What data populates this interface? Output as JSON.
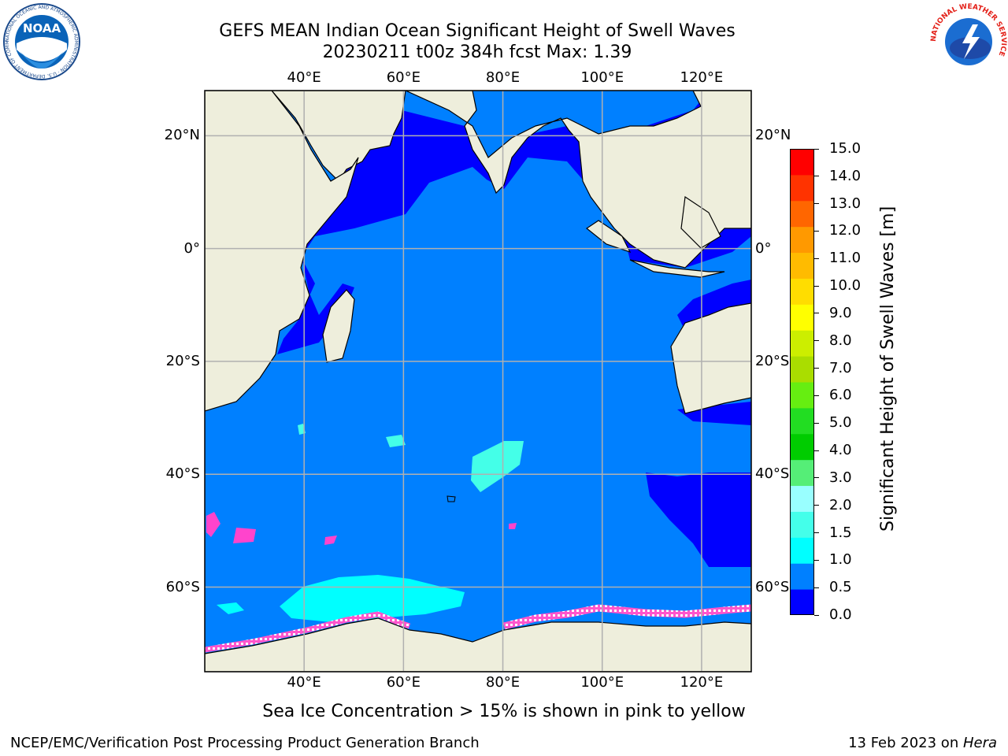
{
  "header": {
    "title_line1": "GEFS MEAN Indian Ocean Significant Height of Swell Waves",
    "title_line2": "20230211 t00z 384h fcst   Max: 1.39"
  },
  "logos": {
    "left_text": "NOAA",
    "left_ring_text": "NATIONAL OCEANIC AND ATMOSPHERIC ADMINISTRATION · U.S. DEPARTMENT OF COMMERCE",
    "right_ring_text": "NATIONAL WEATHER SERVICE"
  },
  "map": {
    "lon_labels": [
      "40°E",
      "60°E",
      "80°E",
      "100°E",
      "120°E"
    ],
    "lat_labels": [
      "20°N",
      "0°",
      "20°S",
      "40°S",
      "60°S"
    ],
    "lon_range": [
      20,
      130
    ],
    "lat_range": [
      -75,
      28
    ],
    "grid": true,
    "colors": {
      "ocean_low": "#0000ff",
      "ocean_main": "#0080ff",
      "ocean_cyan": "#00ffff",
      "ocean_light": "#44ffe8",
      "land": "#eeeedc",
      "ice_pink": "#ff44cc",
      "ice_yellow": "#ffff66"
    }
  },
  "colorbar": {
    "label": "Significant Height of Swell Waves [m]",
    "ticks": [
      "0.0",
      "0.5",
      "1.0",
      "1.5",
      "2.0",
      "3.0",
      "4.0",
      "5.0",
      "6.0",
      "7.0",
      "8.0",
      "9.0",
      "10.0",
      "11.0",
      "12.0",
      "13.0",
      "14.0",
      "15.0"
    ],
    "colors": [
      "#0000ff",
      "#0080ff",
      "#00ffff",
      "#44ffea",
      "#99ffff",
      "#55ee77",
      "#00cc00",
      "#22dd22",
      "#66ee11",
      "#aadd00",
      "#ccee00",
      "#ffff00",
      "#ffdd00",
      "#ffbb00",
      "#ff9900",
      "#ff6600",
      "#ff3300",
      "#ff0000"
    ]
  },
  "caption": "Sea Ice Concentration > 15% is shown in pink to yellow",
  "footer": {
    "left": "NCEP/EMC/Verification Post Processing Product Generation Branch",
    "right_prefix": "13 Feb 2023 on ",
    "right_host": "Hera"
  }
}
